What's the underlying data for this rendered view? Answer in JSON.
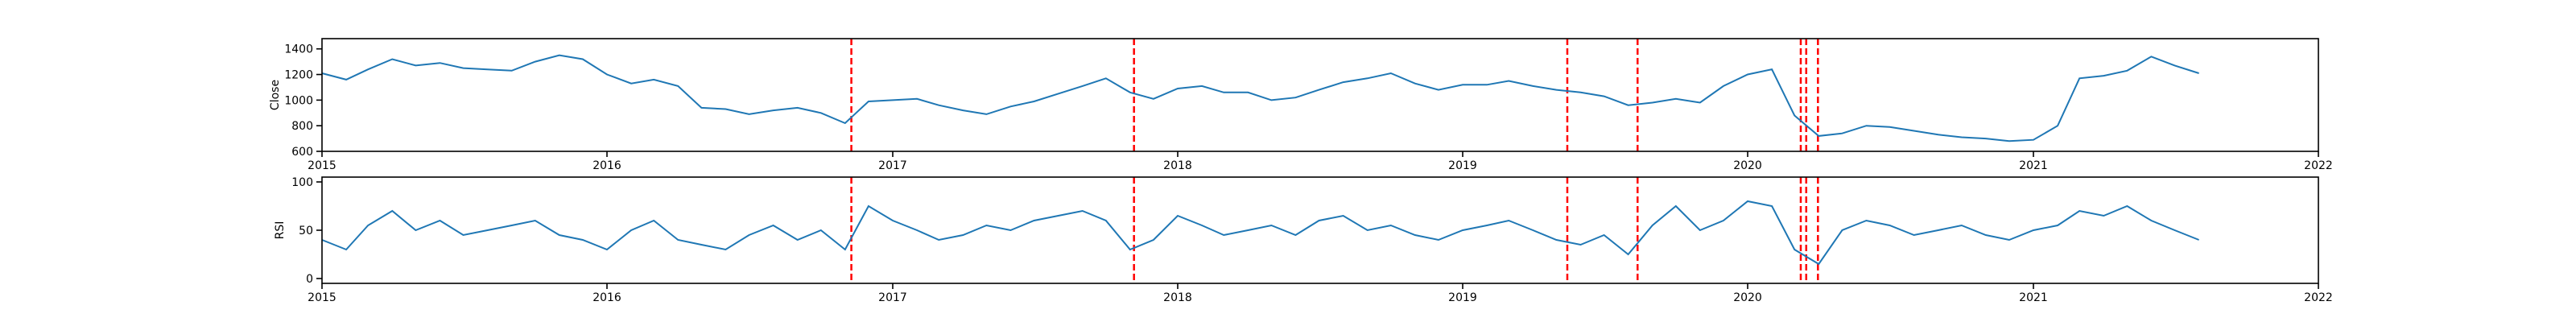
{
  "colors": {
    "line": "#1f77b4",
    "event": "#ff0000",
    "axes": "#000000",
    "background": "#ffffff"
  },
  "chart_data": [
    {
      "type": "line",
      "ylabel": "Close",
      "xlim": [
        "2015-01-01",
        "2022-01-01"
      ],
      "ylim": [
        600,
        1480
      ],
      "yticks": [
        600,
        800,
        1000,
        1200,
        1400
      ],
      "xticks": [
        "2015",
        "2016",
        "2017",
        "2018",
        "2019",
        "2020",
        "2021",
        "2022"
      ],
      "grid": false,
      "series": [
        {
          "x": [
            "2015-01-01",
            "2015-02-01",
            "2015-03-01",
            "2015-04-01",
            "2015-05-01",
            "2015-06-01",
            "2015-07-01",
            "2015-08-01",
            "2015-09-01",
            "2015-10-01",
            "2015-11-01",
            "2015-12-01",
            "2016-01-01",
            "2016-02-01",
            "2016-03-01",
            "2016-04-01",
            "2016-05-01",
            "2016-06-01",
            "2016-07-01",
            "2016-08-01",
            "2016-09-01",
            "2016-10-01",
            "2016-11-01",
            "2016-12-01",
            "2017-01-01",
            "2017-02-01",
            "2017-03-01",
            "2017-04-01",
            "2017-05-01",
            "2017-06-01",
            "2017-07-01",
            "2017-08-01",
            "2017-09-01",
            "2017-10-01",
            "2017-11-01",
            "2017-12-01",
            "2018-01-01",
            "2018-02-01",
            "2018-03-01",
            "2018-04-01",
            "2018-05-01",
            "2018-06-01",
            "2018-07-01",
            "2018-08-01",
            "2018-09-01",
            "2018-10-01",
            "2018-11-01",
            "2018-12-01",
            "2019-01-01",
            "2019-02-01",
            "2019-03-01",
            "2019-04-01",
            "2019-05-01",
            "2019-06-01",
            "2019-07-01",
            "2019-08-01",
            "2019-09-01",
            "2019-10-01",
            "2019-11-01",
            "2019-12-01",
            "2020-01-01",
            "2020-02-01",
            "2020-03-01",
            "2020-04-01",
            "2020-05-01",
            "2020-06-01",
            "2020-07-01",
            "2020-08-01",
            "2020-09-01",
            "2020-10-01",
            "2020-11-01",
            "2020-12-01",
            "2021-01-01",
            "2021-02-01",
            "2021-03-01",
            "2021-04-01",
            "2021-05-01",
            "2021-06-01",
            "2021-07-01",
            "2021-08-01"
          ],
          "values": [
            1210,
            1160,
            1240,
            1320,
            1270,
            1290,
            1250,
            1240,
            1230,
            1300,
            1350,
            1320,
            1200,
            1130,
            1160,
            1110,
            940,
            930,
            890,
            920,
            940,
            900,
            820,
            990,
            1000,
            1010,
            960,
            920,
            890,
            950,
            990,
            1050,
            1110,
            1170,
            1060,
            1010,
            1090,
            1110,
            1060,
            1060,
            1000,
            1020,
            1080,
            1140,
            1170,
            1210,
            1130,
            1080,
            1120,
            1120,
            1150,
            1110,
            1080,
            1060,
            1030,
            960,
            980,
            1010,
            980,
            1110,
            1200,
            1240,
            880,
            720,
            740,
            800,
            790,
            760,
            730,
            710,
            700,
            680,
            690,
            800,
            1170,
            1190,
            1230,
            1340,
            1270,
            1210
          ]
        }
      ],
      "events": [
        "2016-11-09",
        "2017-11-06",
        "2019-05-15",
        "2019-08-13",
        "2020-03-09",
        "2020-03-16",
        "2020-03-31"
      ]
    },
    {
      "type": "line",
      "ylabel": "RSI",
      "xlim": [
        "2015-01-01",
        "2022-01-01"
      ],
      "ylim": [
        -5,
        105
      ],
      "yticks": [
        0,
        50,
        100
      ],
      "xticks": [
        "2015",
        "2016",
        "2017",
        "2018",
        "2019",
        "2020",
        "2021",
        "2022"
      ],
      "grid": false,
      "series": [
        {
          "x": [
            "2015-01-01",
            "2015-02-01",
            "2015-03-01",
            "2015-04-01",
            "2015-05-01",
            "2015-06-01",
            "2015-07-01",
            "2015-08-01",
            "2015-09-01",
            "2015-10-01",
            "2015-11-01",
            "2015-12-01",
            "2016-01-01",
            "2016-02-01",
            "2016-03-01",
            "2016-04-01",
            "2016-05-01",
            "2016-06-01",
            "2016-07-01",
            "2016-08-01",
            "2016-09-01",
            "2016-10-01",
            "2016-11-01",
            "2016-12-01",
            "2017-01-01",
            "2017-02-01",
            "2017-03-01",
            "2017-04-01",
            "2017-05-01",
            "2017-06-01",
            "2017-07-01",
            "2017-08-01",
            "2017-09-01",
            "2017-10-01",
            "2017-11-01",
            "2017-12-01",
            "2018-01-01",
            "2018-02-01",
            "2018-03-01",
            "2018-04-01",
            "2018-05-01",
            "2018-06-01",
            "2018-07-01",
            "2018-08-01",
            "2018-09-01",
            "2018-10-01",
            "2018-11-01",
            "2018-12-01",
            "2019-01-01",
            "2019-02-01",
            "2019-03-01",
            "2019-04-01",
            "2019-05-01",
            "2019-06-01",
            "2019-07-01",
            "2019-08-01",
            "2019-09-01",
            "2019-10-01",
            "2019-11-01",
            "2019-12-01",
            "2020-01-01",
            "2020-02-01",
            "2020-03-01",
            "2020-04-01",
            "2020-05-01",
            "2020-06-01",
            "2020-07-01",
            "2020-08-01",
            "2020-09-01",
            "2020-10-01",
            "2020-11-01",
            "2020-12-01",
            "2021-01-01",
            "2021-02-01",
            "2021-03-01",
            "2021-04-01",
            "2021-05-01",
            "2021-06-01",
            "2021-07-01",
            "2021-08-01"
          ],
          "values": [
            40,
            30,
            55,
            70,
            50,
            60,
            45,
            50,
            55,
            60,
            45,
            40,
            30,
            50,
            60,
            40,
            35,
            30,
            45,
            55,
            40,
            50,
            30,
            75,
            60,
            50,
            40,
            45,
            55,
            50,
            60,
            65,
            70,
            60,
            30,
            40,
            65,
            55,
            45,
            50,
            55,
            45,
            60,
            65,
            50,
            55,
            45,
            40,
            50,
            55,
            60,
            50,
            40,
            35,
            45,
            25,
            55,
            75,
            50,
            60,
            80,
            75,
            30,
            15,
            50,
            60,
            55,
            45,
            50,
            55,
            45,
            40,
            50,
            55,
            70,
            65,
            75,
            60,
            50,
            40
          ]
        }
      ],
      "events": [
        "2016-11-09",
        "2017-11-06",
        "2019-05-15",
        "2019-08-13",
        "2020-03-09",
        "2020-03-16",
        "2020-03-31"
      ]
    }
  ]
}
